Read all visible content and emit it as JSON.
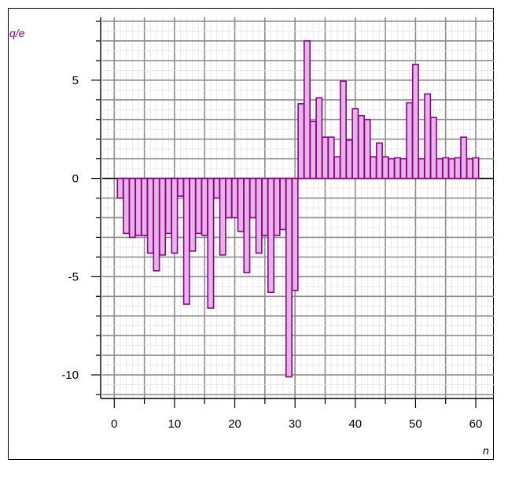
{
  "chart_data": {
    "type": "bar",
    "ylabel": "q/e",
    "xlabel": "n",
    "xlim": [
      -2,
      63
    ],
    "ylim": [
      -11.2,
      8.2
    ],
    "xticks": [
      0,
      10,
      20,
      30,
      40,
      50,
      60
    ],
    "yticks": [
      -10,
      -5,
      0,
      5
    ],
    "grid": true,
    "colors": {
      "bar_fill": "#e8b4e8",
      "bar_stroke": "#8b008b",
      "grid": "#8c8c8c",
      "label": "#8b008b"
    },
    "x": [
      1,
      2,
      3,
      4,
      5,
      6,
      7,
      8,
      9,
      10,
      11,
      12,
      13,
      14,
      15,
      16,
      17,
      18,
      19,
      20,
      21,
      22,
      23,
      24,
      25,
      26,
      27,
      28,
      29,
      30,
      31,
      32,
      33,
      34,
      35,
      36,
      37,
      38,
      39,
      40,
      41,
      42,
      43,
      44,
      45,
      46,
      47,
      48,
      49,
      50,
      51,
      52,
      53,
      54,
      55,
      56,
      57,
      58,
      59,
      60
    ],
    "values": [
      -1.0,
      -2.8,
      -3.0,
      -2.9,
      -2.9,
      -3.8,
      -4.7,
      -3.9,
      -2.8,
      -3.8,
      -0.9,
      -6.4,
      -3.7,
      -2.8,
      -2.9,
      -6.6,
      -1.0,
      -3.9,
      -2.0,
      -2.0,
      -2.7,
      -4.8,
      -2.0,
      -3.8,
      -2.9,
      -5.8,
      -2.9,
      -2.6,
      -10.1,
      -5.7,
      3.8,
      7.0,
      2.9,
      4.1,
      2.1,
      2.1,
      1.1,
      4.95,
      1.95,
      3.55,
      3.2,
      3.0,
      1.1,
      1.8,
      1.1,
      1.0,
      1.05,
      1.0,
      3.85,
      5.8,
      1.0,
      4.3,
      3.1,
      1.0,
      1.05,
      1.0,
      1.05,
      2.1,
      1.0,
      1.05
    ]
  }
}
